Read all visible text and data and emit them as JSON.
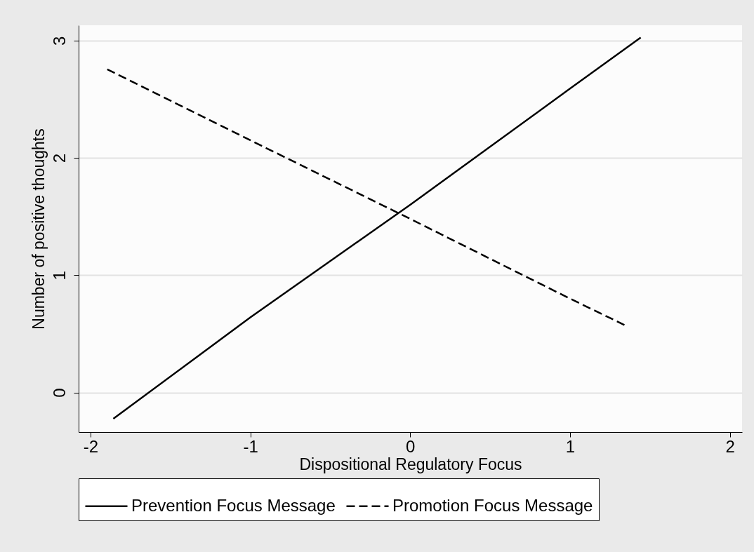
{
  "chart_data": {
    "type": "line",
    "xlabel": "Dispositional Regulatory Focus",
    "ylabel": "Number of positive thoughts",
    "series": [
      {
        "name": "Prevention Focus Message",
        "color": "#000000",
        "line_style": "solid",
        "x": [
          -1.857,
          -1,
          0,
          1,
          1.442
        ],
        "values": [
          -0.224,
          0.64,
          1.6,
          2.59,
          3.025
        ]
      },
      {
        "name": "Promotion Focus Message",
        "color": "#000000",
        "line_style": "dashed",
        "x": [
          -1.895,
          -1,
          0,
          1,
          1.34
        ],
        "values": [
          2.754,
          2.15,
          1.48,
          0.8,
          0.576
        ]
      }
    ],
    "xlim": [
      -2.074,
      2.076
    ],
    "xticks": [
      -2,
      -1,
      0,
      1,
      2
    ],
    "ylim": [
      -0.337,
      3.13
    ],
    "yticks": [
      0,
      1,
      2,
      3
    ],
    "grid": "y",
    "legend": "bottom"
  }
}
